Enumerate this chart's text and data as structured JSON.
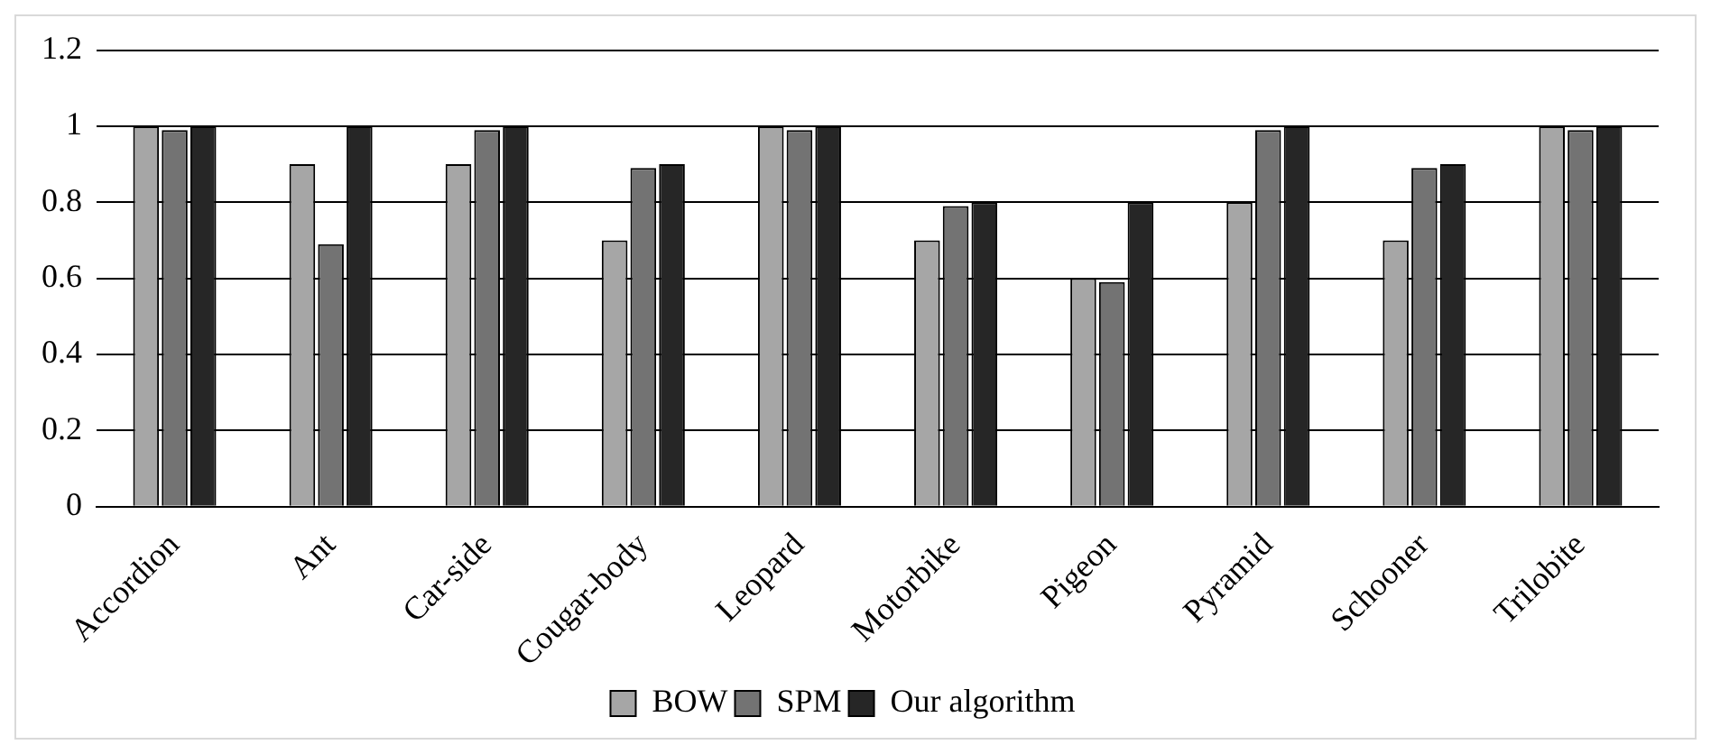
{
  "chart_data": {
    "type": "bar",
    "categories": [
      "Accordion",
      "Ant",
      "Car-side",
      "Cougar-body",
      "Leopard",
      "Motorbike",
      "Pigeon",
      "Pyramid",
      "Schooner",
      "Trilobite"
    ],
    "series": [
      {
        "name": "BOW",
        "color": "#a6a6a6",
        "values": [
          1,
          0.9,
          0.9,
          0.7,
          1,
          0.7,
          0.6,
          0.8,
          0.7,
          1
        ]
      },
      {
        "name": "SPM",
        "color": "#737373",
        "values": [
          0.99,
          0.69,
          0.99,
          0.89,
          0.99,
          0.79,
          0.59,
          0.99,
          0.89,
          0.99
        ]
      },
      {
        "name": "Our algorithm",
        "color": "#262626",
        "values": [
          1,
          1,
          1,
          0.9,
          1,
          0.8,
          0.8,
          1,
          0.9,
          1
        ]
      }
    ],
    "ylim": [
      0,
      1.2
    ],
    "yticks": [
      0,
      0.2,
      0.4,
      0.6,
      0.8,
      1,
      1.2
    ],
    "grid": "y",
    "legend": "bottom"
  }
}
